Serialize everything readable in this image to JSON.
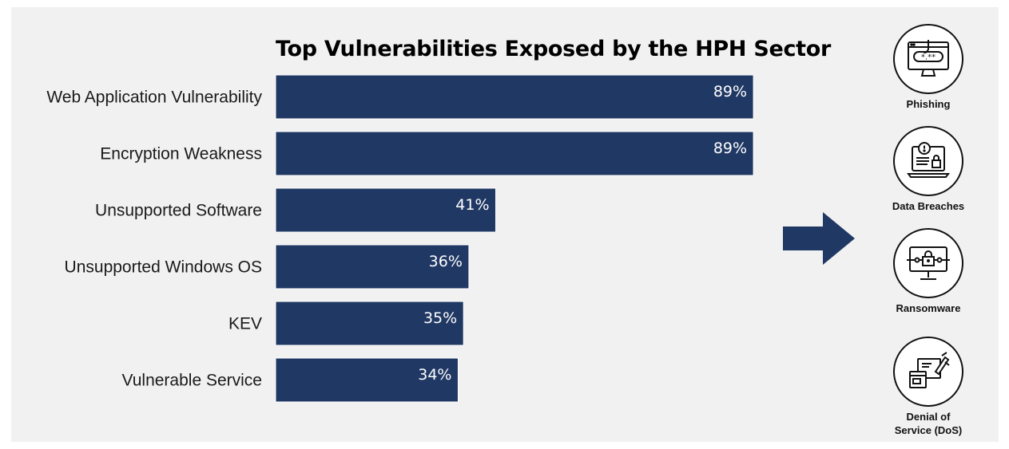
{
  "chart_data": {
    "type": "bar",
    "orientation": "horizontal",
    "title": "Top Vulnerabilities Exposed by the HPH Sector",
    "categories": [
      "Web Application Vulnerability",
      "Encryption Weakness",
      "Unsupported Software",
      "Unsupported Windows OS",
      "KEV",
      "Vulnerable Service"
    ],
    "values": [
      89,
      89,
      41,
      36,
      35,
      34
    ],
    "value_labels": [
      "89%",
      "89%",
      "41%",
      "36%",
      "35%",
      "34%"
    ],
    "xlim": [
      0,
      100
    ],
    "grid": false,
    "bar_color": "#203864"
  },
  "colors": {
    "bar": "#203864",
    "arrow": "#203864",
    "background": "#f1f1f1"
  },
  "threats": [
    {
      "label": "Phishing",
      "icon": "phishing-icon"
    },
    {
      "label": "Data Breaches",
      "icon": "data-breach-icon"
    },
    {
      "label": "Ransomware",
      "icon": "ransomware-icon"
    },
    {
      "label": "Denial of Service (DoS)",
      "icon": "denial-of-service-icon"
    }
  ]
}
